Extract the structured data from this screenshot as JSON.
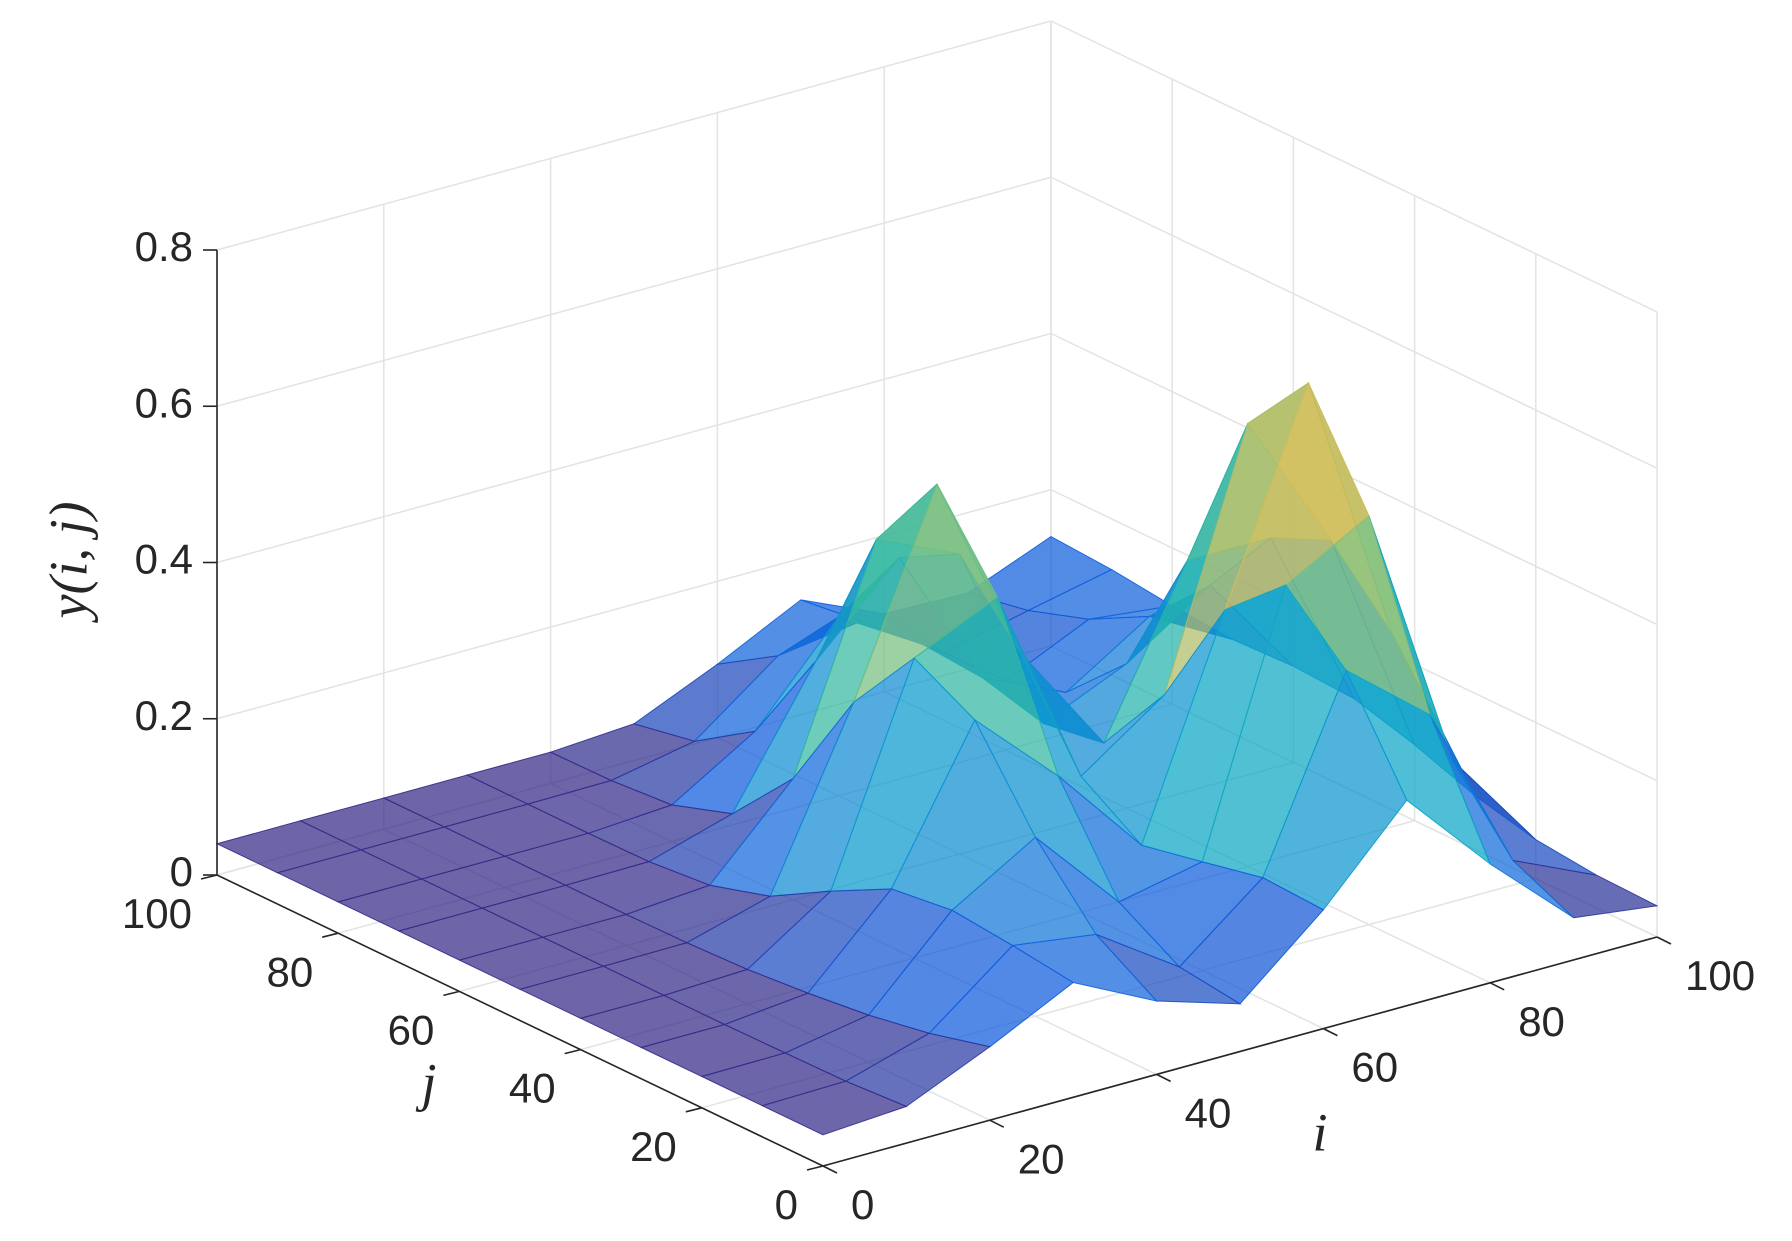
{
  "chart_data": {
    "type": "surface",
    "xlabel": "i",
    "ylabel": "j",
    "zlabel": "y(i, j)",
    "x": [
      0,
      10,
      20,
      30,
      40,
      50,
      60,
      70,
      80,
      90,
      100
    ],
    "y": [
      0,
      10,
      20,
      30,
      40,
      50,
      60,
      70,
      80,
      90,
      100
    ],
    "z": [
      [
        0.04,
        0.047,
        0.094,
        0.147,
        0.094,
        0.061,
        0.152,
        0.263,
        0.152,
        0.054,
        0.04
      ],
      [
        0.04,
        0.042,
        0.074,
        0.157,
        0.142,
        0.071,
        0.156,
        0.392,
        0.306,
        0.09,
        0.042
      ],
      [
        0.04,
        0.041,
        0.06,
        0.165,
        0.229,
        0.117,
        0.139,
        0.464,
        0.523,
        0.181,
        0.05
      ],
      [
        0.04,
        0.04,
        0.051,
        0.155,
        0.342,
        0.241,
        0.123,
        0.395,
        0.656,
        0.307,
        0.069
      ],
      [
        0.04,
        0.04,
        0.044,
        0.115,
        0.384,
        0.432,
        0.174,
        0.249,
        0.567,
        0.388,
        0.097
      ],
      [
        0.04,
        0.04,
        0.041,
        0.071,
        0.29,
        0.54,
        0.295,
        0.15,
        0.354,
        0.354,
        0.119
      ],
      [
        0.04,
        0.04,
        0.04,
        0.048,
        0.155,
        0.432,
        0.384,
        0.138,
        0.185,
        0.256,
        0.123
      ],
      [
        0.04,
        0.04,
        0.04,
        0.041,
        0.073,
        0.239,
        0.342,
        0.159,
        0.111,
        0.179,
        0.12
      ],
      [
        0.04,
        0.04,
        0.04,
        0.04,
        0.047,
        0.112,
        0.229,
        0.165,
        0.089,
        0.138,
        0.126
      ],
      [
        0.04,
        0.04,
        0.04,
        0.04,
        0.041,
        0.062,
        0.142,
        0.157,
        0.087,
        0.112,
        0.135
      ],
      [
        0.04,
        0.04,
        0.04,
        0.04,
        0.04,
        0.047,
        0.094,
        0.147,
        0.1,
        0.097,
        0.14
      ]
    ],
    "xlim": [
      0,
      100
    ],
    "ylim": [
      0,
      100
    ],
    "zlim": [
      0,
      0.8
    ],
    "xticks": [
      0,
      20,
      40,
      60,
      80,
      100
    ],
    "yticks": [
      0,
      20,
      40,
      60,
      80,
      100
    ],
    "zticks": [
      0,
      0.2,
      0.4,
      0.6,
      0.8
    ],
    "grid": true,
    "face_alpha": 0.72,
    "colormap": [
      "#352a87",
      "#0f5cdd",
      "#1481d6",
      "#06a4ca",
      "#2eb7a4",
      "#87bf77",
      "#d1bb59",
      "#fec832",
      "#f9fb0e"
    ]
  }
}
